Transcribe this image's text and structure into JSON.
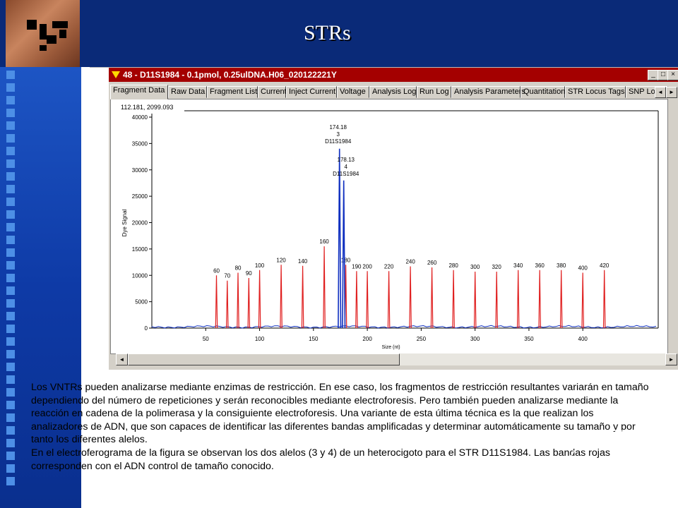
{
  "slide": {
    "title": "STRs",
    "paragraph1": "Los VNTRs pueden analizarse mediante enzimas de restricción. En ese caso, los fragmentos de restricción resultantes variarán en tamaño dependiendo del número de repeticiones y serán reconocibles mediante electroforesis. Pero también pueden analizarse mediante la reacción en cadena de la polimerasa y la consiguiente electroforesis. Una variante de esta última técnica es la que realizan los analizadores de ADN, que son capaces de identificar las diferentes bandas amplificadas y determinar automáticamente su tamaño y por tanto los diferentes alelos.",
    "paragraph2": "En el electroferograma de la figura se observan los dos alelos (3 y 4) de un heterocigoto para el STR D11S1984. Las bandas rojas corresponden con el ADN control de tamaño conocido."
  },
  "window": {
    "title": "48 - D11S1984 - 0.1pmol, 0.25ulDNA.H06_020122221Y",
    "buttons": [
      "_",
      "□",
      "×"
    ],
    "tabs": [
      "Fragment Data",
      "Raw Data",
      "Fragment List",
      "Current",
      "Inject Current",
      "Voltage",
      "Analysis Log",
      "Run Log",
      "Analysis Parameters",
      "Quantitation",
      "STR Locus Tags",
      "SNP Loc"
    ],
    "active_tab": "Fragment Data",
    "scroll_left": "◄",
    "scroll_right": "►",
    "coord_readout": "112.181, 2099.093"
  },
  "colors": {
    "ladder": "#e02020",
    "sample": "#1030c0",
    "titlebar": "#a40000"
  },
  "chart_data": {
    "type": "line",
    "xlabel": "Size (nt)",
    "ylabel": "Dye Signal",
    "xlim": [
      0,
      470
    ],
    "ylim": [
      0,
      40000
    ],
    "xticks": [
      50,
      100,
      150,
      200,
      250,
      300,
      350,
      400
    ],
    "yticks": [
      0,
      5000,
      10000,
      15000,
      20000,
      25000,
      30000,
      35000,
      40000
    ],
    "series": [
      {
        "color": "red",
        "peaks": [
          {
            "x": 60,
            "y": 10000,
            "label": "60"
          },
          {
            "x": 70,
            "y": 9000,
            "label": "70"
          },
          {
            "x": 80,
            "y": 10500,
            "label": "80"
          },
          {
            "x": 90,
            "y": 9500,
            "label": "90"
          },
          {
            "x": 100,
            "y": 11000,
            "label": "100"
          },
          {
            "x": 120,
            "y": 12000,
            "label": "120"
          },
          {
            "x": 140,
            "y": 11800,
            "label": "140"
          },
          {
            "x": 160,
            "y": 15500,
            "label": "160"
          },
          {
            "x": 180,
            "y": 12000,
            "label": "180"
          },
          {
            "x": 190,
            "y": 10800,
            "label": "190"
          },
          {
            "x": 200,
            "y": 10800,
            "label": "200"
          },
          {
            "x": 220,
            "y": 10800,
            "label": "220"
          },
          {
            "x": 240,
            "y": 11700,
            "label": "240"
          },
          {
            "x": 260,
            "y": 11500,
            "label": "260"
          },
          {
            "x": 280,
            "y": 11000,
            "label": "280"
          },
          {
            "x": 300,
            "y": 10700,
            "label": "300"
          },
          {
            "x": 320,
            "y": 10700,
            "label": "320"
          },
          {
            "x": 340,
            "y": 11000,
            "label": "340"
          },
          {
            "x": 360,
            "y": 11000,
            "label": "360"
          },
          {
            "x": 380,
            "y": 11000,
            "label": "380"
          },
          {
            "x": 400,
            "y": 10500,
            "label": "400"
          },
          {
            "x": 420,
            "y": 11000,
            "label": "420"
          }
        ]
      },
      {
        "color": "blue",
        "peaks": [
          {
            "x": 174.18,
            "y": 34000,
            "label": "174.18",
            "allele": "3",
            "marker": "D11S1984"
          },
          {
            "x": 178.13,
            "y": 28000,
            "label": "178.13",
            "allele": "4",
            "marker": "D11S1984"
          }
        ]
      }
    ]
  }
}
